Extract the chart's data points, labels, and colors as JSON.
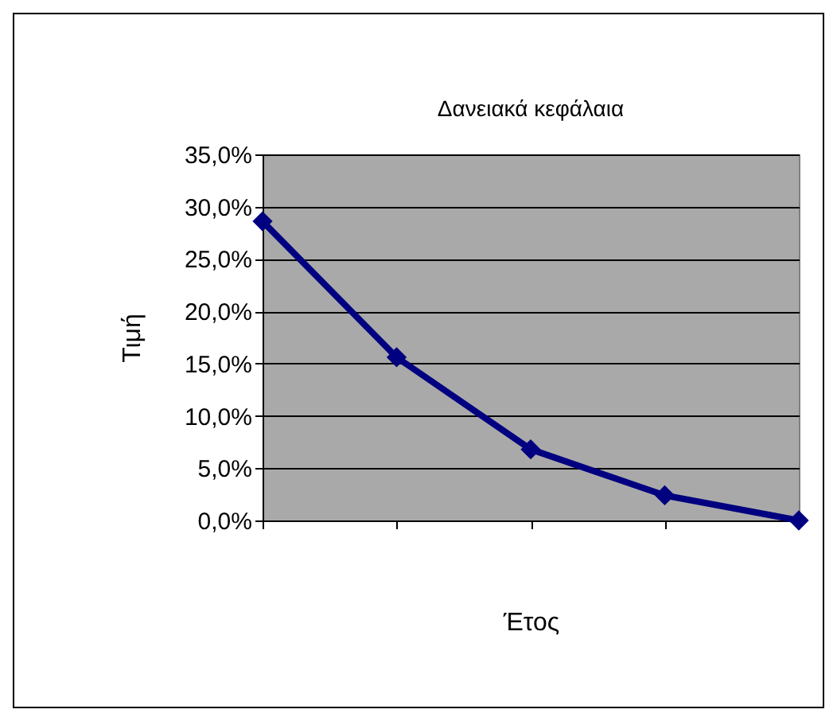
{
  "chart_data": {
    "type": "line",
    "title": "Δανειακά κεφάλαια",
    "xlabel": "Έτος",
    "ylabel": "Τιμή",
    "categories": [
      null,
      null,
      null,
      null,
      null
    ],
    "series": [
      {
        "color": "#000080",
        "values": [
          28.6,
          15.6,
          6.8,
          2.4,
          0
        ]
      }
    ],
    "ylim": [
      0,
      35
    ],
    "yticks": [
      {
        "value": 0,
        "label": "0,0%"
      },
      {
        "value": 5,
        "label": "5,0%"
      },
      {
        "value": 10,
        "label": "10,0%"
      },
      {
        "value": 15,
        "label": "15,0%"
      },
      {
        "value": 20,
        "label": "20,0%"
      },
      {
        "value": 25,
        "label": "25,0%"
      },
      {
        "value": 30,
        "label": "30,0%"
      },
      {
        "value": 35,
        "label": "35,0%"
      }
    ],
    "grid": "y",
    "marker": "diamond",
    "line_style": "solid",
    "tick_labels": "y"
  }
}
